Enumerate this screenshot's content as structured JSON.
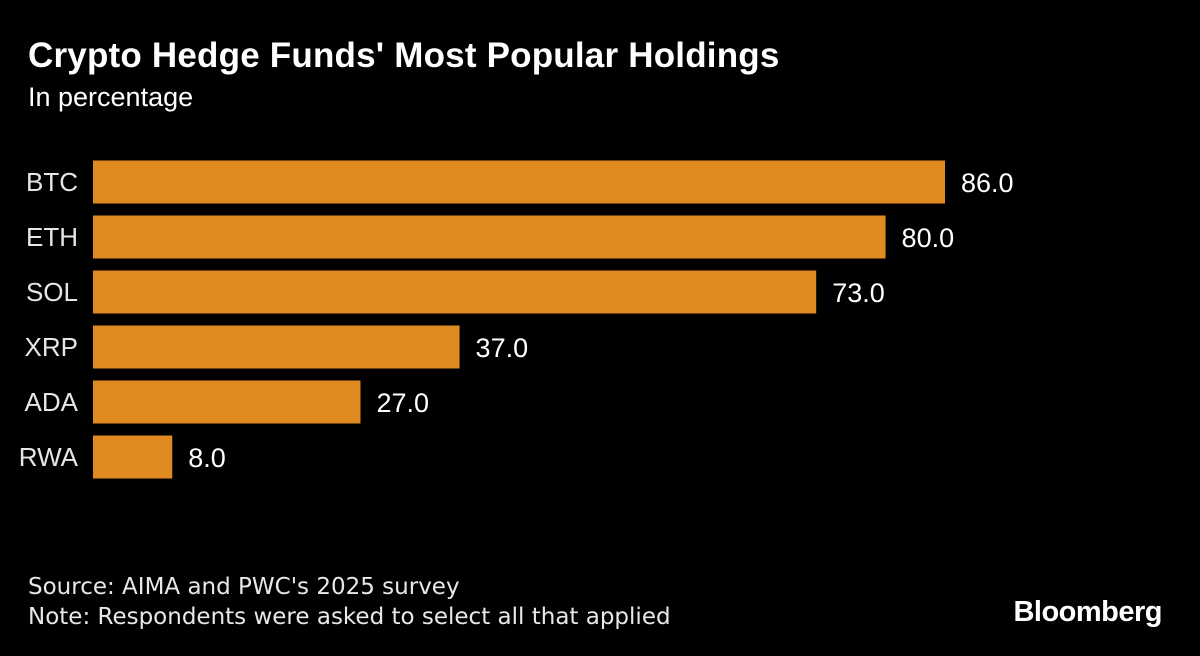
{
  "chart_data": {
    "type": "bar",
    "orientation": "horizontal",
    "title": "Crypto Hedge Funds' Most Popular Holdings",
    "subtitle": "In percentage",
    "categories": [
      "BTC",
      "ETH",
      "SOL",
      "XRP",
      "ADA",
      "RWA"
    ],
    "values": [
      86.0,
      80.0,
      73.0,
      37.0,
      27.0,
      8.0
    ],
    "value_labels": [
      "86.0",
      "80.0",
      "73.0",
      "37.0",
      "27.0",
      "8.0"
    ],
    "xlim": [
      0,
      100
    ],
    "xlabel": "",
    "ylabel": "",
    "grid": false,
    "legend": "none",
    "bar_color": "#E08A22"
  },
  "footer": {
    "source": "Source: AIMA and PWC's 2025 survey",
    "note": "Note: Respondents were asked to select all that applied"
  },
  "brand": {
    "logo_text": "Bloomberg"
  },
  "colors": {
    "background": "#000000",
    "text": "#FFFFFF",
    "accent": "#E08A22"
  }
}
